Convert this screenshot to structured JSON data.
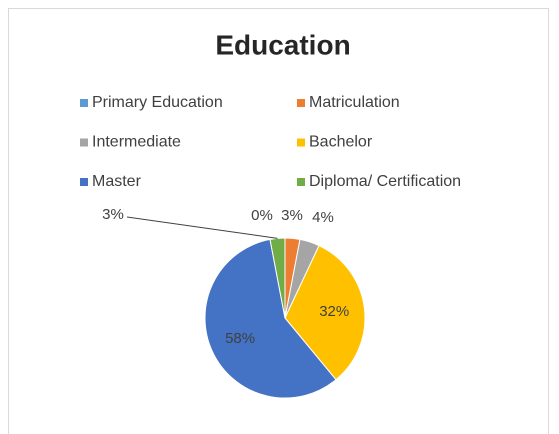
{
  "chart_data": {
    "type": "pie",
    "title": "Education",
    "categories": [
      "Primary Education",
      "Matriculation",
      "Intermediate",
      "Bachelor",
      "Master",
      "Diploma/ Certification"
    ],
    "values": [
      0,
      3,
      4,
      32,
      58,
      3
    ],
    "value_labels": [
      "0%",
      "3%",
      "4%",
      "32%",
      "58%",
      "3%"
    ],
    "colors": [
      "#5b9bd5",
      "#ed7d31",
      "#a5a5a5",
      "#ffc000",
      "#4472c4",
      "#70ad47"
    ],
    "legend": "top"
  }
}
